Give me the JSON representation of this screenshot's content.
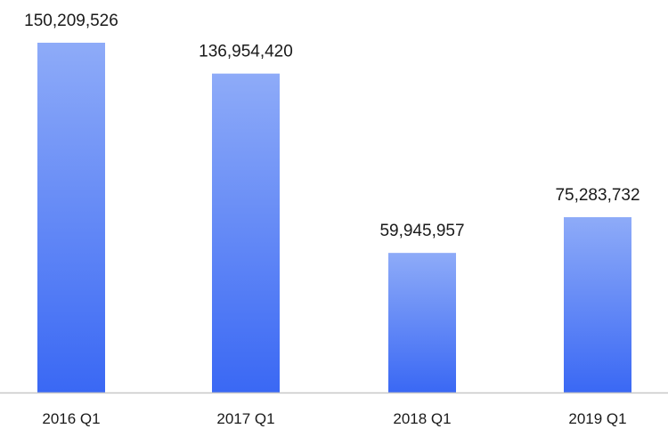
{
  "chart_data": {
    "type": "bar",
    "categories": [
      "2016 Q1",
      "2017 Q1",
      "2018 Q1",
      "2019 Q1"
    ],
    "values": [
      150209526,
      136954420,
      59945957,
      75283732
    ],
    "data_labels": [
      "150,209,526",
      "136,954,420",
      "59,945,957",
      "75,283,732"
    ],
    "title": "",
    "xlabel": "",
    "ylabel": "",
    "ylim": [
      0,
      150209526
    ],
    "grid": false,
    "legend": "none",
    "colors": {
      "bar_top": "#8eabf8",
      "bar_bottom": "#3a68f4",
      "axis": "#c8c8c8"
    }
  }
}
